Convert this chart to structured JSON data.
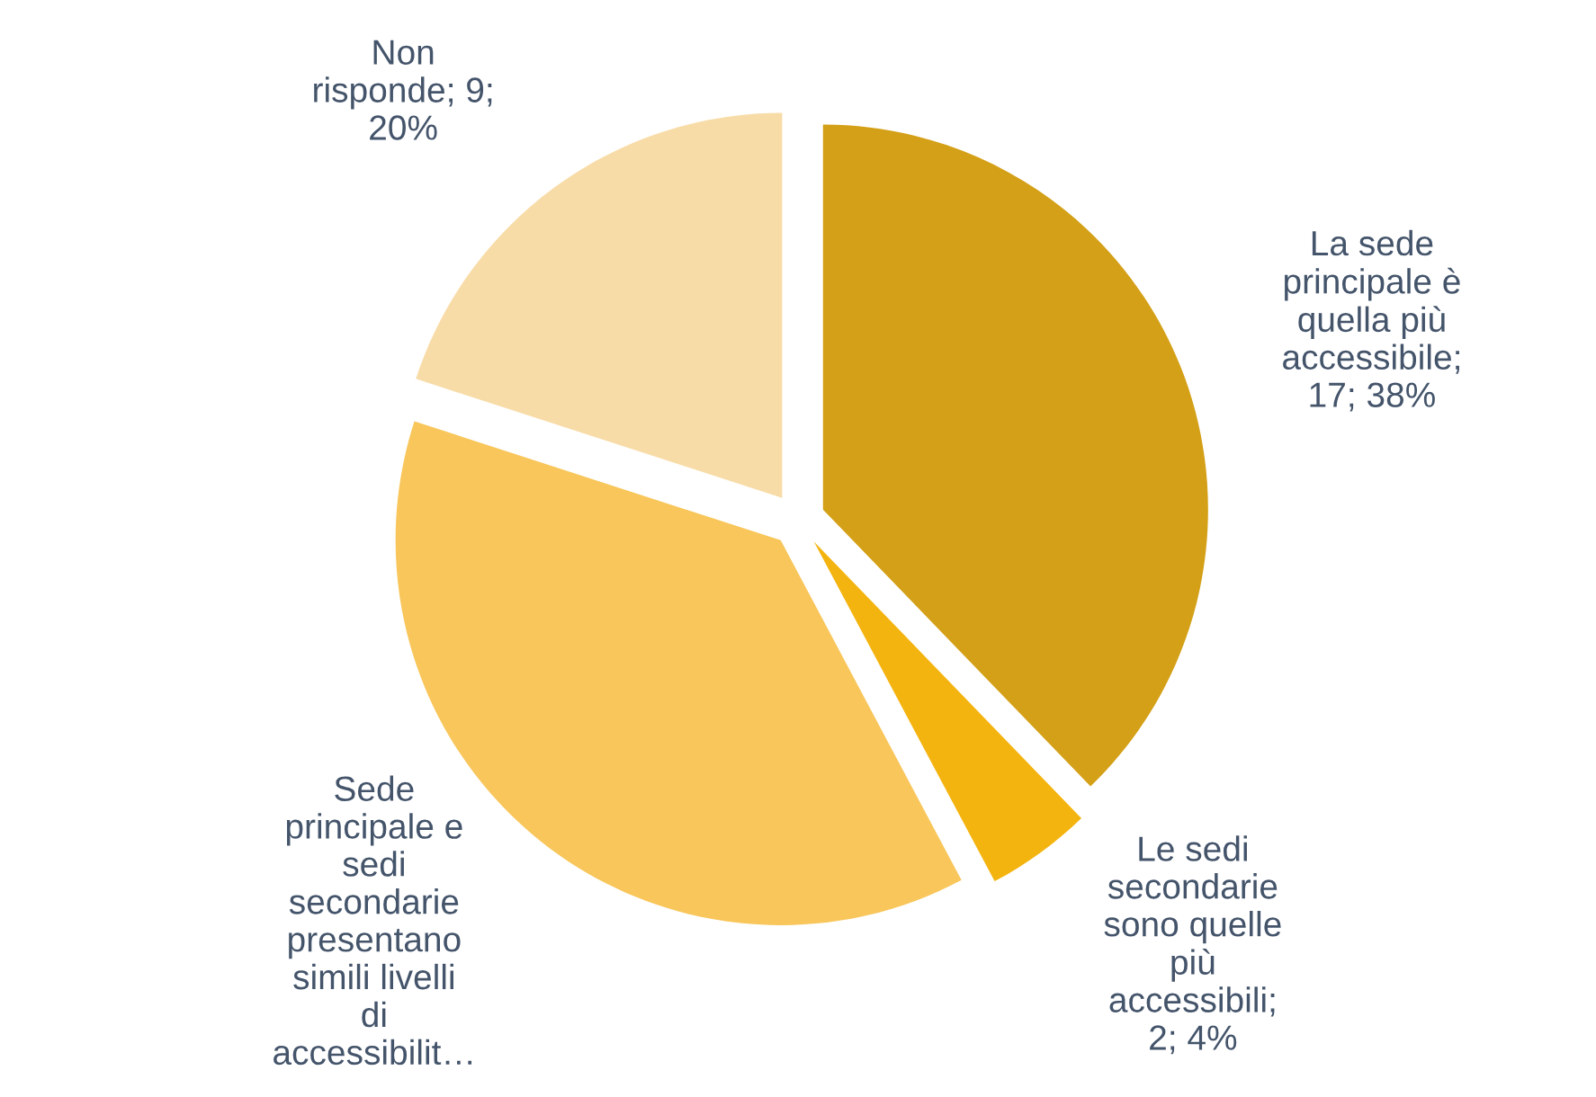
{
  "chart_data": {
    "type": "pie",
    "categories": [
      "La sede\nprincipale è\nquella più\naccessibile;\n17; 38%",
      "Le sedi\nsecondarie\nsono quelle\npiù\naccessibili;\n2; 4%",
      "Sede\nprincipale e\nsedi\nsecondarie\npresentano\nsimili livelli\ndi\naccessibilit…",
      "Non\nrisponde; 9;\n20%"
    ],
    "values": [
      17,
      2,
      17,
      9
    ],
    "colors": [
      "#d4a017",
      "#f4b410",
      "#f8c65a",
      "#f8dca8"
    ],
    "legend": false
  }
}
